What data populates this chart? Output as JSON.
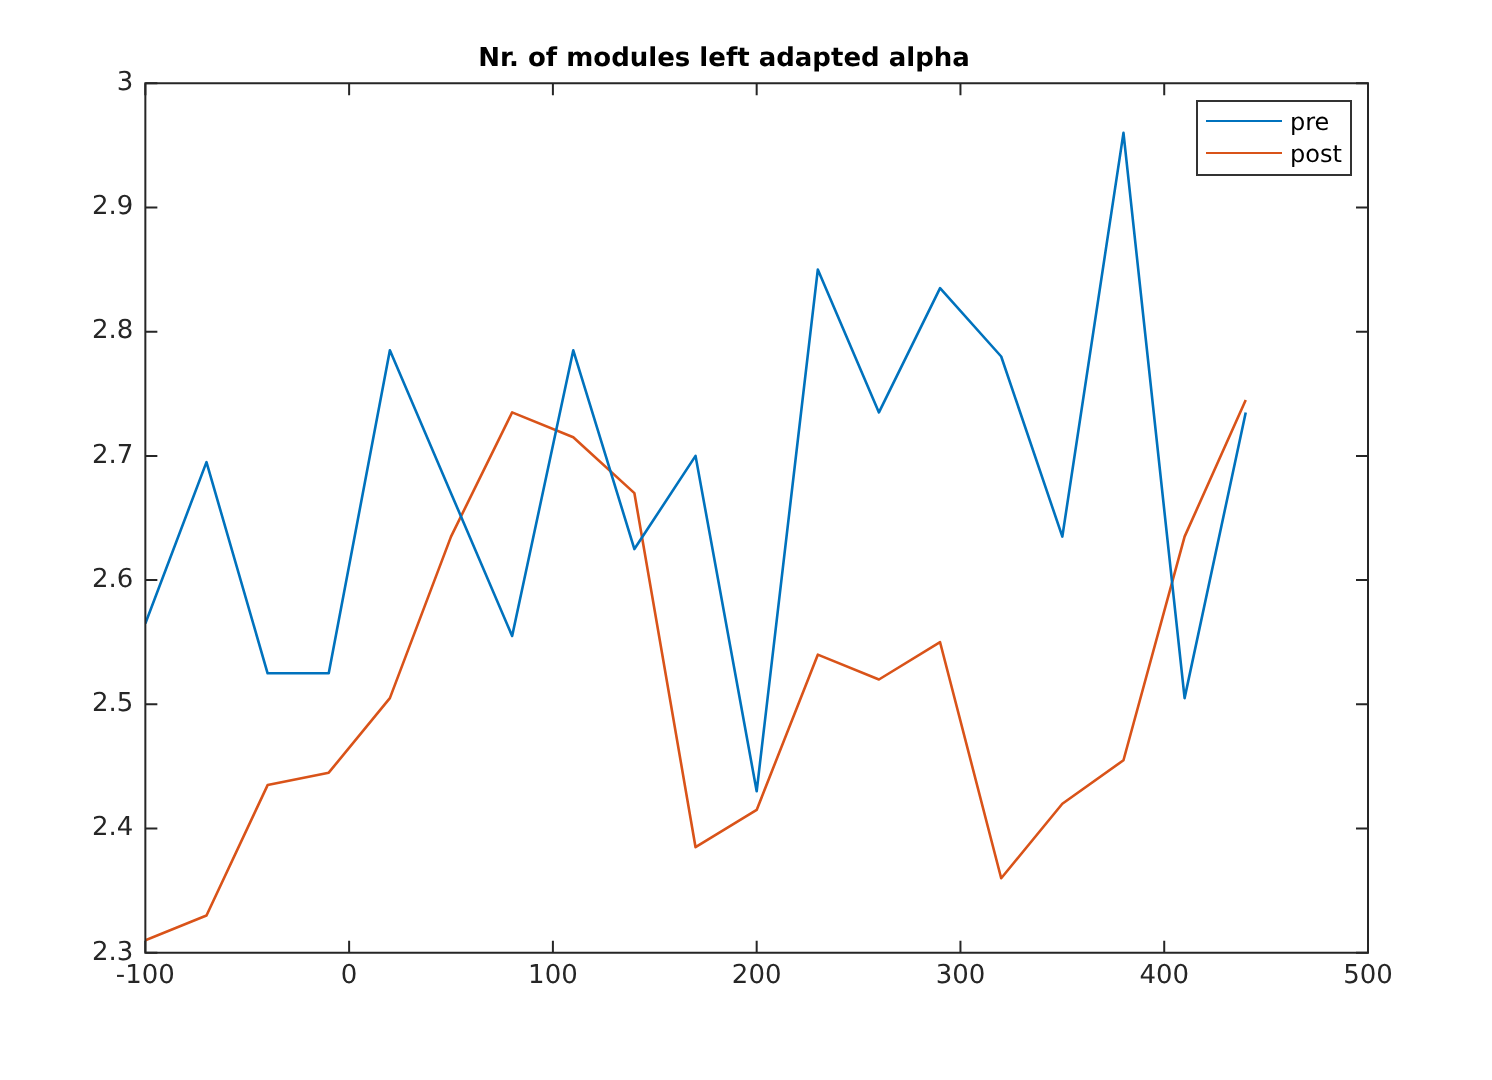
{
  "chart_data": {
    "type": "line",
    "title": "Nr. of modules left adapted alpha",
    "x": [
      -100,
      -70,
      -40,
      -10,
      20,
      50,
      80,
      110,
      140,
      170,
      200,
      230,
      260,
      290,
      320,
      350,
      380,
      410,
      440
    ],
    "series": [
      {
        "name": "pre",
        "color": "#0072bd",
        "values": [
          2.565,
          2.695,
          2.525,
          2.525,
          2.785,
          2.67,
          2.555,
          2.785,
          2.625,
          2.7,
          2.43,
          2.85,
          2.735,
          2.835,
          2.78,
          2.635,
          2.96,
          2.505,
          2.735
        ]
      },
      {
        "name": "post",
        "color": "#d95319",
        "values": [
          2.31,
          2.33,
          2.435,
          2.445,
          2.505,
          2.635,
          2.735,
          2.715,
          2.67,
          2.385,
          2.415,
          2.54,
          2.52,
          2.55,
          2.36,
          2.42,
          2.455,
          2.635,
          2.745
        ]
      }
    ],
    "xlim": [
      -100,
      500
    ],
    "xticks": [
      -100,
      0,
      100,
      200,
      300,
      400,
      500
    ],
    "ylim": [
      2.3,
      3
    ],
    "yticks": [
      2.3,
      2.4,
      2.5,
      2.6,
      2.7,
      2.8,
      2.9,
      3
    ],
    "grid": false,
    "legend": "top right",
    "marker": "none",
    "line_style": "solid"
  }
}
